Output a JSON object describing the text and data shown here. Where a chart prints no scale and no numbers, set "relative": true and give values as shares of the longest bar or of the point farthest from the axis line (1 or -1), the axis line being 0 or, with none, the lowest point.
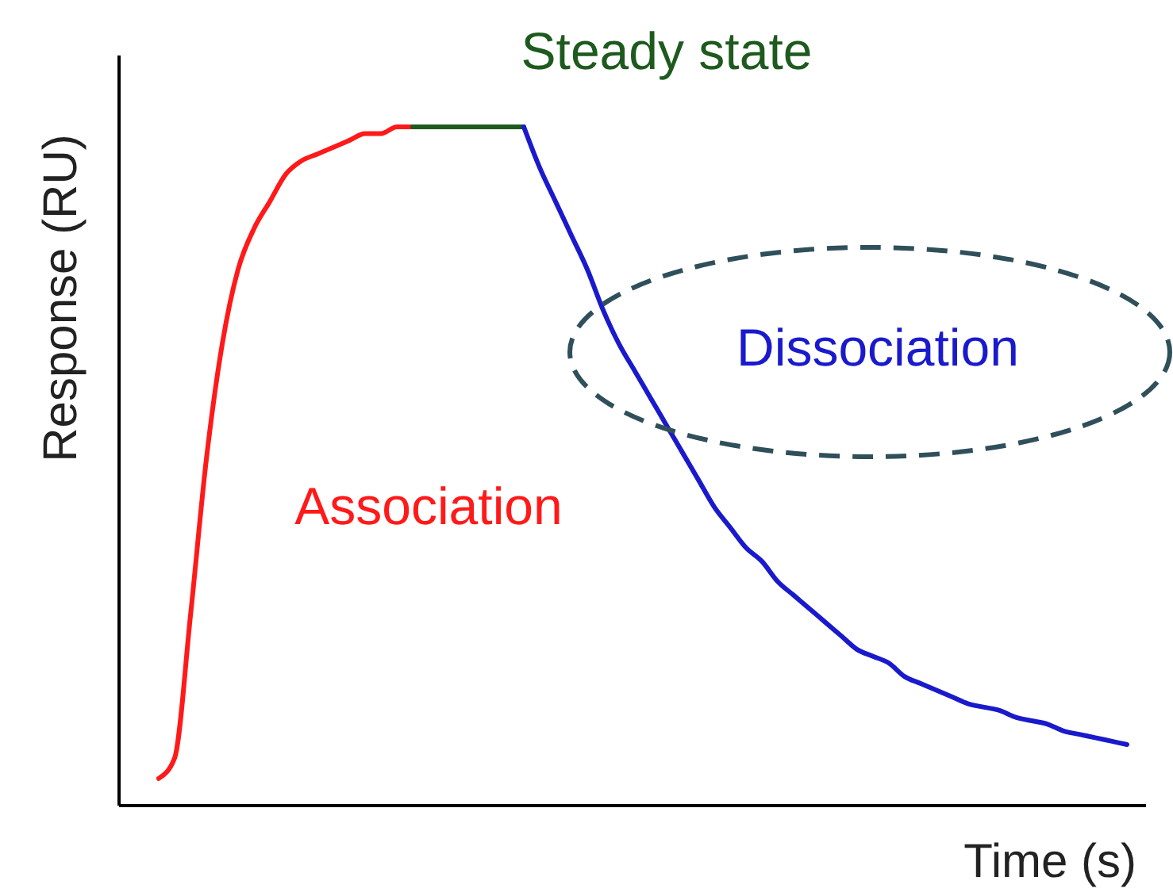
{
  "chart_data": {
    "type": "line",
    "relative": true,
    "xlabel": "Time (s)",
    "ylabel": "Response (RU)",
    "marker": "none",
    "line_style": "solid",
    "categories": [
      null,
      null,
      null,
      null,
      null,
      null,
      null,
      null,
      null,
      null,
      null,
      null,
      null,
      null,
      null,
      null,
      null,
      null,
      null,
      null,
      null,
      null,
      null,
      null,
      null,
      null,
      null,
      null,
      null,
      null,
      null,
      null,
      null,
      null,
      null,
      null,
      null,
      null,
      null,
      null,
      null,
      null,
      null,
      null,
      null,
      null,
      null,
      null,
      null,
      null,
      null,
      null,
      null,
      null,
      null,
      null,
      null,
      null,
      null,
      null,
      null,
      null
    ],
    "series": [
      {
        "name": "Association",
        "color": "#ff1a1a",
        "values": [
          0.04,
          0.07,
          0.28,
          0.51,
          0.68,
          0.79,
          0.85,
          0.89,
          0.93,
          0.95,
          0.96,
          0.97,
          0.98,
          0.99,
          0.99,
          1,
          1,
          null,
          null,
          null,
          null,
          null,
          null,
          null,
          null,
          null,
          null,
          null,
          null,
          null,
          null,
          null,
          null,
          null,
          null,
          null,
          null,
          null,
          null,
          null,
          null,
          null,
          null,
          null,
          null,
          null,
          null,
          null,
          null,
          null,
          null,
          null,
          null,
          null,
          null,
          null,
          null,
          null,
          null,
          null,
          null,
          null
        ]
      },
      {
        "name": "Steady state",
        "color": "#1e5a1e",
        "values": [
          null,
          null,
          null,
          null,
          null,
          null,
          null,
          null,
          null,
          null,
          null,
          null,
          null,
          null,
          null,
          null,
          1,
          1,
          1,
          1,
          1,
          1,
          1,
          1,
          null,
          null,
          null,
          null,
          null,
          null,
          null,
          null,
          null,
          null,
          null,
          null,
          null,
          null,
          null,
          null,
          null,
          null,
          null,
          null,
          null,
          null,
          null,
          null,
          null,
          null,
          null,
          null,
          null,
          null,
          null,
          null,
          null,
          null,
          null,
          null,
          null,
          null
        ]
      },
      {
        "name": "Dissociation",
        "color": "#1a1acc",
        "values": [
          null,
          null,
          null,
          null,
          null,
          null,
          null,
          null,
          null,
          null,
          null,
          null,
          null,
          null,
          null,
          null,
          null,
          null,
          null,
          null,
          null,
          null,
          null,
          1,
          0.94,
          0.89,
          0.84,
          0.79,
          0.73,
          0.68,
          0.64,
          0.6,
          0.56,
          0.52,
          0.48,
          0.44,
          0.41,
          0.38,
          0.36,
          0.33,
          0.31,
          0.29,
          0.27,
          0.25,
          0.23,
          0.22,
          0.21,
          0.19,
          0.18,
          0.17,
          0.16,
          0.15,
          0.145,
          0.14,
          0.13,
          0.125,
          0.12,
          0.11,
          0.105,
          0.1,
          0.095,
          0.09
        ]
      }
    ]
  }
}
